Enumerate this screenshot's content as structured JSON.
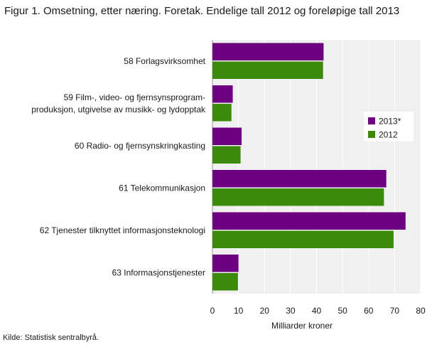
{
  "title": "Figur 1. Omsetning, etter næring. Foretak. Endelige tall 2012 og foreløpige tall 2013",
  "source": "Kilde: Statistisk sentralbyrå.",
  "chart_data": {
    "type": "bar",
    "orientation": "horizontal",
    "categories": [
      [
        "58 Forlagsvirksomhet"
      ],
      [
        "59 Film-, video- og fjernsynsprogram-",
        "produksjon, utgivelse av musikk- og lydopptak"
      ],
      [
        "60 Radio- og fjernsynskringkasting"
      ],
      [
        "61 Telekommunikasjon"
      ],
      [
        "62 Tjenester tilknyttet informasjonsteknologi"
      ],
      [
        "63 Informasjonstjenester"
      ]
    ],
    "series": [
      {
        "name": "2013*",
        "color": "#6c0080",
        "values": [
          42.7,
          7.8,
          11.2,
          66.8,
          74.2,
          10.0
        ]
      },
      {
        "name": "2012",
        "color": "#3c8a0a",
        "values": [
          42.5,
          7.3,
          10.8,
          65.9,
          69.6,
          9.8
        ]
      }
    ],
    "xlabel": "Milliarder  kroner",
    "ylabel": "",
    "xlim": [
      0,
      80
    ],
    "xticks": [
      0,
      10,
      20,
      30,
      40,
      50,
      60,
      70,
      80
    ],
    "grid": "vertical",
    "legend": "right"
  }
}
